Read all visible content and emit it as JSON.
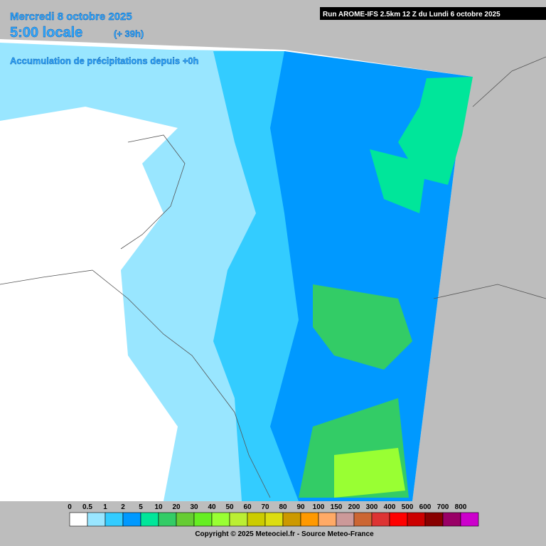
{
  "header": {
    "date": "Mercredi 8 octobre 2025",
    "time": "5:00 locale",
    "offset": "(+ 39h)",
    "subtitle": "Accumulation de précipitations depuis +0h",
    "run": "Run AROME-IFS 2.5km 12 Z du Lundi 6 octobre 2025"
  },
  "legend": {
    "items": [
      {
        "label": 0,
        "color": "#ffffff"
      },
      {
        "label": 0.5,
        "color": "#99e6ff"
      },
      {
        "label": 1,
        "color": "#33ccff"
      },
      {
        "label": 2,
        "color": "#0099ff"
      },
      {
        "label": 5,
        "color": "#00e69a"
      },
      {
        "label": 10,
        "color": "#33cc66"
      },
      {
        "label": 20,
        "color": "#66cc33"
      },
      {
        "label": 30,
        "color": "#66ee22"
      },
      {
        "label": 40,
        "color": "#99ff33"
      },
      {
        "label": 50,
        "color": "#bbee33"
      },
      {
        "label": 60,
        "color": "#cccc00"
      },
      {
        "label": 70,
        "color": "#dddd11"
      },
      {
        "label": 80,
        "color": "#cc9900"
      },
      {
        "label": 90,
        "color": "#ff9900"
      },
      {
        "label": 100,
        "color": "#ffaa66"
      },
      {
        "label": 150,
        "color": "#cc9999"
      },
      {
        "label": 200,
        "color": "#cc6633"
      },
      {
        "label": 300,
        "color": "#dd3333"
      },
      {
        "label": 400,
        "color": "#ff0000"
      },
      {
        "label": 500,
        "color": "#cc0000"
      },
      {
        "label": 600,
        "color": "#880000"
      },
      {
        "label": 700,
        "color": "#990066"
      },
      {
        "label": 800,
        "color": "#cc00cc"
      }
    ]
  },
  "footer": {
    "copyright": "Copyright © 2025 Meteociel.fr - Source Meteo-France"
  }
}
